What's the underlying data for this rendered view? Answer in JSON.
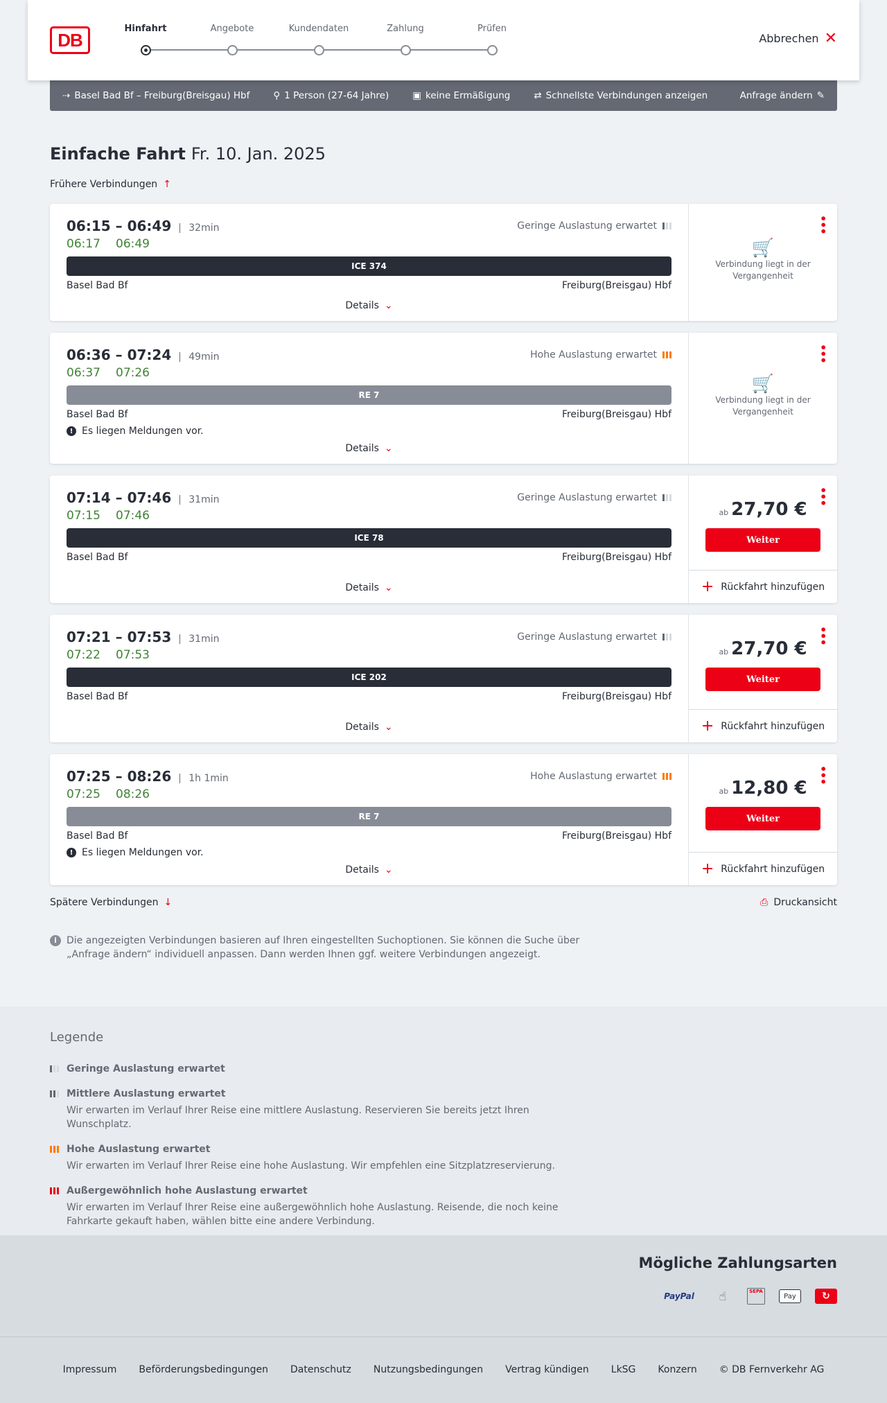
{
  "header": {
    "logo": "DB",
    "steps": [
      "Hinfahrt",
      "Angebote",
      "Kundendaten",
      "Zahlung",
      "Prüfen"
    ],
    "active_step": 0,
    "cancel": "Abbrechen"
  },
  "search": {
    "route": "Basel Bad Bf – Freiburg(Breisgau) Hbf",
    "travellers": "1 Person (27-64 Jahre)",
    "discount": "keine Ermäßigung",
    "option": "Schnellste Verbindungen anzeigen",
    "change": "Anfrage ändern"
  },
  "page": {
    "title": "Einfache Fahrt",
    "date": "Fr. 10. Jan. 2025",
    "earlier": "Frühere Verbindungen",
    "later": "Spätere Verbindungen",
    "print": "Druckansicht",
    "info": "Die angezeigten Verbindungen basieren auf Ihren eingestellten Suchoptionen. Sie können die Suche über „Anfrage ändern“ individuell anpassen. Dann werden Ihnen ggf. weitere Verbindungen angezeigt."
  },
  "labels": {
    "details": "Details",
    "past": "Verbindung liegt in der Vergangenheit",
    "ab": "ab",
    "weiter": "Weiter",
    "return": "Rückfahrt hinzufügen"
  },
  "colors": {
    "accent": "#ec0016",
    "realtime": "#408335",
    "ice": "#282d37",
    "regional": "#878c96",
    "high_load": "#ff7a00"
  },
  "connections": [
    {
      "time": "06:15 – 06:49",
      "duration": "32min",
      "rt_dep": "06:17",
      "rt_arr": "06:49",
      "train": "ICE 374",
      "kind": "ice",
      "from": "Basel Bad Bf",
      "to": "Freiburg(Breisgau) Hbf",
      "load": "Geringe Auslastung erwartet",
      "load_level": "low",
      "message": null,
      "price": null
    },
    {
      "time": "06:36 – 07:24",
      "duration": "49min",
      "rt_dep": "06:37",
      "rt_arr": "07:26",
      "train": "RE 7",
      "kind": "regional",
      "from": "Basel Bad Bf",
      "to": "Freiburg(Breisgau) Hbf",
      "load": "Hohe Auslastung erwartet",
      "load_level": "high",
      "message": "Es liegen Meldungen vor.",
      "price": null
    },
    {
      "time": "07:14 – 07:46",
      "duration": "31min",
      "rt_dep": "07:15",
      "rt_arr": "07:46",
      "train": "ICE 78",
      "kind": "ice",
      "from": "Basel Bad Bf",
      "to": "Freiburg(Breisgau) Hbf",
      "load": "Geringe Auslastung erwartet",
      "load_level": "low",
      "message": null,
      "price": "27,70 €"
    },
    {
      "time": "07:21 – 07:53",
      "duration": "31min",
      "rt_dep": "07:22",
      "rt_arr": "07:53",
      "train": "ICE 202",
      "kind": "ice",
      "from": "Basel Bad Bf",
      "to": "Freiburg(Breisgau) Hbf",
      "load": "Geringe Auslastung erwartet",
      "load_level": "low",
      "message": null,
      "price": "27,70 €"
    },
    {
      "time": "07:25 – 08:26",
      "duration": "1h 1min",
      "rt_dep": "07:25",
      "rt_arr": "08:26",
      "train": "RE 7",
      "kind": "regional",
      "from": "Basel Bad Bf",
      "to": "Freiburg(Breisgau) Hbf",
      "load": "Hohe Auslastung erwartet",
      "load_level": "high",
      "message": "Es liegen Meldungen vor.",
      "price": "12,80 €"
    }
  ],
  "legend": {
    "title": "Legende",
    "items": [
      {
        "level": "low",
        "title": "Geringe Auslastung erwartet",
        "text": ""
      },
      {
        "level": "mid",
        "title": "Mittlere Auslastung erwartet",
        "text": "Wir erwarten im Verlauf Ihrer Reise eine mittlere Auslastung. Reservieren Sie bereits jetzt Ihren Wunschplatz."
      },
      {
        "level": "high",
        "title": "Hohe Auslastung erwartet",
        "text": "Wir erwarten im Verlauf Ihrer Reise eine hohe Auslastung. Wir empfehlen eine Sitzplatzreservierung."
      },
      {
        "level": "ext",
        "title": "Außergewöhnlich hohe Auslastung erwartet",
        "text": "Wir erwarten im Verlauf Ihrer Reise eine außergewöhnlich hohe Auslastung. Reisende, die noch keine Fahrkarte gekauft haben, wählen bitte eine andere Verbindung."
      }
    ]
  },
  "payment": {
    "title": "Mögliche Zahlungsarten",
    "methods": [
      "PayPal",
      "contactless-card",
      "SEPA",
      "Pay",
      "DB-Bonus"
    ]
  },
  "footer": {
    "links": [
      "Impressum",
      "Beförderungsbedingungen",
      "Datenschutz",
      "Nutzungsbedingungen",
      "Vertrag kündigen",
      "LkSG",
      "Konzern",
      "© DB Fernverkehr AG"
    ]
  }
}
